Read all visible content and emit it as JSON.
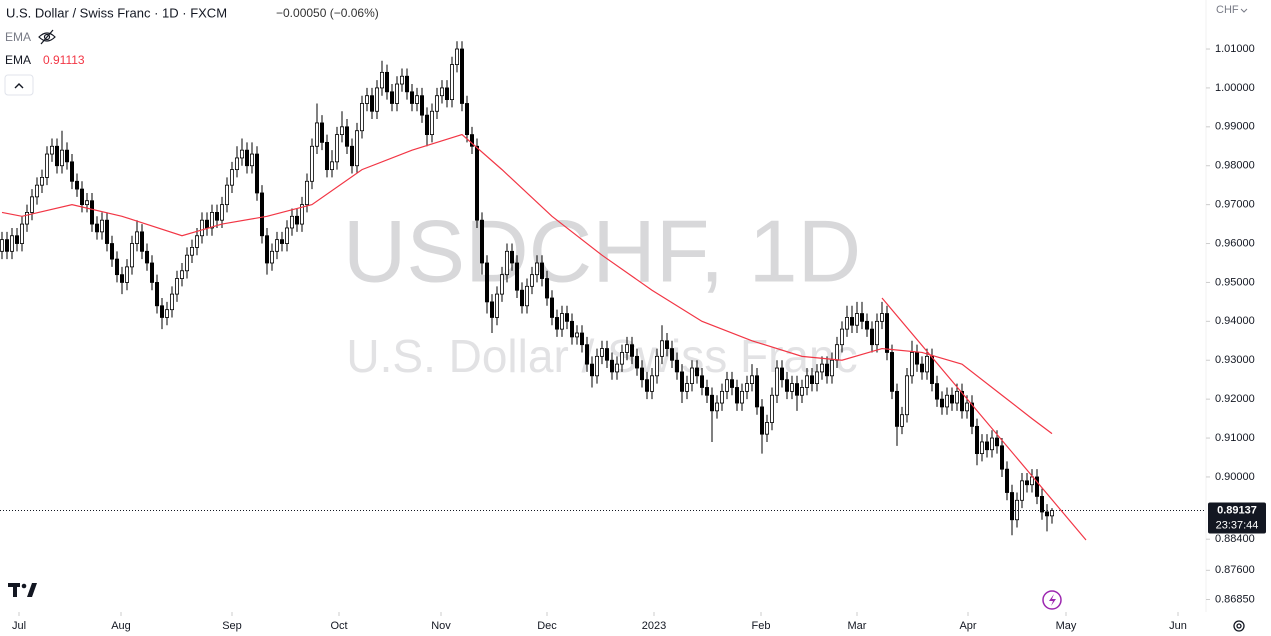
{
  "header": {
    "title": "U.S. Dollar / Swiss Franc · 1D · FXCM",
    "change": "−0.00050 (−0.06%)"
  },
  "indicators": [
    {
      "name": "EMA"
    },
    {
      "name": "EMA",
      "value": 0.91113,
      "color": "#f23645"
    }
  ],
  "chart_data": {
    "type": "candlestick",
    "currency": "CHF",
    "watermark": "USDCHF, 1D",
    "watermark_sub": "U.S. Dollar / Swiss Franc",
    "up_color": "#ffffff",
    "down_color": "#000000",
    "wick_color": "#000000",
    "xlim": [
      -0.4,
      240.8
    ],
    "ylim": [
      0.8658,
      1.0226
    ],
    "yticks": [
      {
        "value": 1.01,
        "label": "1.01000"
      },
      {
        "value": 1.0,
        "label": "1.00000"
      },
      {
        "value": 0.99,
        "label": "0.99000"
      },
      {
        "value": 0.98,
        "label": "0.98000"
      },
      {
        "value": 0.97,
        "label": "0.97000"
      },
      {
        "value": 0.96,
        "label": "0.96000"
      },
      {
        "value": 0.95,
        "label": "0.95000"
      },
      {
        "value": 0.94,
        "label": "0.94000"
      },
      {
        "value": 0.93,
        "label": "0.93000"
      },
      {
        "value": 0.92,
        "label": "0.92000"
      },
      {
        "value": 0.91,
        "label": "0.91000"
      },
      {
        "value": 0.9,
        "label": "0.90000"
      },
      {
        "value": 0.884,
        "label": "0.88400"
      },
      {
        "value": 0.876,
        "label": "0.87600"
      },
      {
        "value": 0.8685,
        "label": "0.86850"
      }
    ],
    "xticks": [
      {
        "value": 3.4,
        "label": "Jul"
      },
      {
        "value": 23.8,
        "label": "Aug"
      },
      {
        "value": 46,
        "label": "Sep"
      },
      {
        "value": 67.4,
        "label": "Oct"
      },
      {
        "value": 87.8,
        "label": "Nov"
      },
      {
        "value": 109,
        "label": "Dec"
      },
      {
        "value": 130.4,
        "label": "2023"
      },
      {
        "value": 151.8,
        "label": "Feb"
      },
      {
        "value": 171,
        "label": "Mar"
      },
      {
        "value": 193.2,
        "label": "Apr"
      },
      {
        "value": 212.8,
        "label": "May"
      },
      {
        "value": 235.2,
        "label": "Jun"
      }
    ],
    "last_price": {
      "value": 0.89137,
      "label": "0.89137"
    },
    "countdown": "23:37:44",
    "ema": {
      "color": "#f23645",
      "x": [
        0,
        4,
        14,
        24,
        36,
        44,
        53,
        62,
        72,
        82,
        92,
        100,
        110,
        120,
        130,
        140,
        150,
        160,
        168,
        176,
        184,
        192,
        200,
        206,
        210
      ],
      "values": [
        0.968,
        0.967,
        0.97,
        0.967,
        0.962,
        0.965,
        0.967,
        0.97,
        0.979,
        0.984,
        0.988,
        0.979,
        0.967,
        0.957,
        0.948,
        0.94,
        0.935,
        0.931,
        0.93,
        0.933,
        0.932,
        0.929,
        0.921,
        0.915,
        0.91113
      ]
    },
    "trendline": {
      "color": "#f23645",
      "x": [
        176,
        216.8
      ],
      "values": [
        0.946,
        0.8838
      ]
    },
    "ohlc": [
      [
        0.958,
        0.963,
        0.956,
        0.961
      ],
      [
        0.961,
        0.963,
        0.956,
        0.958
      ],
      [
        0.958,
        0.964,
        0.956,
        0.962
      ],
      [
        0.962,
        0.964,
        0.958,
        0.96
      ],
      [
        0.96,
        0.967,
        0.958,
        0.965
      ],
      [
        0.965,
        0.97,
        0.963,
        0.968
      ],
      [
        0.968,
        0.974,
        0.966,
        0.972
      ],
      [
        0.972,
        0.977,
        0.97,
        0.975
      ],
      [
        0.975,
        0.979,
        0.973,
        0.977
      ],
      [
        0.977,
        0.985,
        0.975,
        0.983
      ],
      [
        0.983,
        0.987,
        0.981,
        0.985
      ],
      [
        0.985,
        0.987,
        0.978,
        0.98
      ],
      [
        0.98,
        0.989,
        0.978,
        0.984
      ],
      [
        0.984,
        0.986,
        0.979,
        0.981
      ],
      [
        0.981,
        0.983,
        0.974,
        0.976
      ],
      [
        0.976,
        0.978,
        0.972,
        0.974
      ],
      [
        0.974,
        0.976,
        0.968,
        0.97
      ],
      [
        0.97,
        0.973,
        0.968,
        0.971
      ],
      [
        0.971,
        0.973,
        0.963,
        0.965
      ],
      [
        0.965,
        0.967,
        0.961,
        0.963
      ],
      [
        0.963,
        0.968,
        0.961,
        0.966
      ],
      [
        0.966,
        0.968,
        0.958,
        0.96
      ],
      [
        0.96,
        0.962,
        0.954,
        0.956
      ],
      [
        0.956,
        0.958,
        0.95,
        0.952
      ],
      [
        0.952,
        0.954,
        0.947,
        0.95
      ],
      [
        0.95,
        0.956,
        0.948,
        0.954
      ],
      [
        0.954,
        0.962,
        0.952,
        0.96
      ],
      [
        0.96,
        0.966,
        0.958,
        0.963
      ],
      [
        0.963,
        0.965,
        0.956,
        0.958
      ],
      [
        0.958,
        0.96,
        0.953,
        0.955
      ],
      [
        0.955,
        0.957,
        0.948,
        0.95
      ],
      [
        0.95,
        0.952,
        0.942,
        0.944
      ],
      [
        0.944,
        0.946,
        0.938,
        0.941
      ],
      [
        0.941,
        0.945,
        0.939,
        0.943
      ],
      [
        0.943,
        0.949,
        0.941,
        0.947
      ],
      [
        0.947,
        0.953,
        0.945,
        0.951
      ],
      [
        0.951,
        0.955,
        0.949,
        0.953
      ],
      [
        0.953,
        0.959,
        0.951,
        0.957
      ],
      [
        0.957,
        0.961,
        0.955,
        0.959
      ],
      [
        0.959,
        0.964,
        0.957,
        0.962
      ],
      [
        0.962,
        0.968,
        0.96,
        0.966
      ],
      [
        0.966,
        0.968,
        0.962,
        0.964
      ],
      [
        0.964,
        0.97,
        0.962,
        0.968
      ],
      [
        0.968,
        0.97,
        0.964,
        0.966
      ],
      [
        0.966,
        0.972,
        0.964,
        0.97
      ],
      [
        0.97,
        0.977,
        0.968,
        0.975
      ],
      [
        0.975,
        0.981,
        0.973,
        0.979
      ],
      [
        0.979,
        0.985,
        0.977,
        0.982
      ],
      [
        0.982,
        0.987,
        0.98,
        0.984
      ],
      [
        0.984,
        0.986,
        0.978,
        0.98
      ],
      [
        0.98,
        0.986,
        0.978,
        0.983
      ],
      [
        0.983,
        0.985,
        0.971,
        0.973
      ],
      [
        0.973,
        0.975,
        0.96,
        0.962
      ],
      [
        0.962,
        0.964,
        0.952,
        0.955
      ],
      [
        0.955,
        0.96,
        0.953,
        0.958
      ],
      [
        0.958,
        0.963,
        0.956,
        0.961
      ],
      [
        0.961,
        0.963,
        0.958,
        0.96
      ],
      [
        0.96,
        0.966,
        0.958,
        0.964
      ],
      [
        0.964,
        0.969,
        0.962,
        0.967
      ],
      [
        0.967,
        0.969,
        0.963,
        0.965
      ],
      [
        0.965,
        0.972,
        0.963,
        0.97
      ],
      [
        0.97,
        0.978,
        0.968,
        0.976
      ],
      [
        0.976,
        0.987,
        0.974,
        0.985
      ],
      [
        0.985,
        0.996,
        0.983,
        0.991
      ],
      [
        0.991,
        0.993,
        0.984,
        0.986
      ],
      [
        0.986,
        0.988,
        0.977,
        0.979
      ],
      [
        0.979,
        0.984,
        0.977,
        0.981
      ],
      [
        0.981,
        0.99,
        0.979,
        0.988
      ],
      [
        0.988,
        0.994,
        0.986,
        0.99
      ],
      [
        0.99,
        0.992,
        0.983,
        0.985
      ],
      [
        0.985,
        0.987,
        0.978,
        0.98
      ],
      [
        0.98,
        0.991,
        0.978,
        0.989
      ],
      [
        0.989,
        0.998,
        0.987,
        0.996
      ],
      [
        0.996,
        1.0,
        0.994,
        0.998
      ],
      [
        0.998,
        1.0,
        0.992,
        0.994
      ],
      [
        0.994,
        1.002,
        0.992,
        1.0
      ],
      [
        1.0,
        1.007,
        0.998,
        1.004
      ],
      [
        1.004,
        1.006,
        0.997,
        0.999
      ],
      [
        0.999,
        1.001,
        0.994,
        0.996
      ],
      [
        0.996,
        1.003,
        0.994,
        1.001
      ],
      [
        1.001,
        1.005,
        0.999,
        1.003
      ],
      [
        1.003,
        1.005,
        0.997,
        0.999
      ],
      [
        0.999,
        1.001,
        0.994,
        0.996
      ],
      [
        0.996,
        1.0,
        0.994,
        0.998
      ],
      [
        0.998,
        1.0,
        0.991,
        0.993
      ],
      [
        0.993,
        0.995,
        0.985,
        0.988
      ],
      [
        0.988,
        0.996,
        0.986,
        0.994
      ],
      [
        0.994,
        1.0,
        0.992,
        0.998
      ],
      [
        0.998,
        1.002,
        0.996,
        1.0
      ],
      [
        1.0,
        1.002,
        0.995,
        0.997
      ],
      [
        0.997,
        1.008,
        0.995,
        1.006
      ],
      [
        1.006,
        1.012,
        1.004,
        1.01
      ],
      [
        1.01,
        1.012,
        0.994,
        0.996
      ],
      [
        0.996,
        0.998,
        0.986,
        0.988
      ],
      [
        0.988,
        0.99,
        0.983,
        0.985
      ],
      [
        0.985,
        0.987,
        0.964,
        0.966
      ],
      [
        0.966,
        0.968,
        0.952,
        0.955
      ],
      [
        0.955,
        0.957,
        0.942,
        0.945
      ],
      [
        0.945,
        0.947,
        0.937,
        0.941
      ],
      [
        0.941,
        0.949,
        0.939,
        0.947
      ],
      [
        0.947,
        0.954,
        0.945,
        0.952
      ],
      [
        0.952,
        0.96,
        0.95,
        0.958
      ],
      [
        0.958,
        0.96,
        0.953,
        0.955
      ],
      [
        0.955,
        0.957,
        0.946,
        0.948
      ],
      [
        0.948,
        0.95,
        0.942,
        0.944
      ],
      [
        0.944,
        0.951,
        0.942,
        0.949
      ],
      [
        0.949,
        0.954,
        0.947,
        0.952
      ],
      [
        0.952,
        0.957,
        0.95,
        0.955
      ],
      [
        0.955,
        0.957,
        0.949,
        0.951
      ],
      [
        0.951,
        0.953,
        0.944,
        0.946
      ],
      [
        0.946,
        0.948,
        0.939,
        0.941
      ],
      [
        0.941,
        0.943,
        0.936,
        0.938
      ],
      [
        0.938,
        0.944,
        0.936,
        0.942
      ],
      [
        0.942,
        0.944,
        0.938,
        0.94
      ],
      [
        0.94,
        0.942,
        0.934,
        0.936
      ],
      [
        0.936,
        0.939,
        0.934,
        0.937
      ],
      [
        0.937,
        0.939,
        0.932,
        0.934
      ],
      [
        0.934,
        0.936,
        0.927,
        0.929
      ],
      [
        0.929,
        0.931,
        0.923,
        0.926
      ],
      [
        0.926,
        0.933,
        0.924,
        0.931
      ],
      [
        0.931,
        0.935,
        0.929,
        0.933
      ],
      [
        0.933,
        0.935,
        0.928,
        0.93
      ],
      [
        0.93,
        0.932,
        0.925,
        0.927
      ],
      [
        0.927,
        0.931,
        0.925,
        0.929
      ],
      [
        0.929,
        0.934,
        0.927,
        0.932
      ],
      [
        0.932,
        0.936,
        0.93,
        0.934
      ],
      [
        0.934,
        0.936,
        0.929,
        0.931
      ],
      [
        0.931,
        0.933,
        0.926,
        0.928
      ],
      [
        0.928,
        0.93,
        0.923,
        0.925
      ],
      [
        0.925,
        0.927,
        0.92,
        0.922
      ],
      [
        0.922,
        0.928,
        0.92,
        0.926
      ],
      [
        0.926,
        0.933,
        0.924,
        0.931
      ],
      [
        0.931,
        0.939,
        0.929,
        0.935
      ],
      [
        0.935,
        0.937,
        0.931,
        0.933
      ],
      [
        0.933,
        0.935,
        0.928,
        0.93
      ],
      [
        0.93,
        0.932,
        0.925,
        0.927
      ],
      [
        0.927,
        0.929,
        0.919,
        0.922
      ],
      [
        0.922,
        0.926,
        0.92,
        0.924
      ],
      [
        0.924,
        0.93,
        0.922,
        0.928
      ],
      [
        0.928,
        0.93,
        0.924,
        0.926
      ],
      [
        0.926,
        0.928,
        0.921,
        0.923
      ],
      [
        0.923,
        0.925,
        0.919,
        0.921
      ],
      [
        0.921,
        0.923,
        0.909,
        0.917
      ],
      [
        0.917,
        0.921,
        0.915,
        0.919
      ],
      [
        0.919,
        0.924,
        0.917,
        0.922
      ],
      [
        0.922,
        0.927,
        0.92,
        0.925
      ],
      [
        0.925,
        0.927,
        0.921,
        0.923
      ],
      [
        0.923,
        0.925,
        0.917,
        0.919
      ],
      [
        0.919,
        0.924,
        0.917,
        0.922
      ],
      [
        0.922,
        0.926,
        0.92,
        0.924
      ],
      [
        0.924,
        0.929,
        0.922,
        0.926
      ],
      [
        0.926,
        0.928,
        0.916,
        0.918
      ],
      [
        0.918,
        0.92,
        0.906,
        0.911
      ],
      [
        0.911,
        0.916,
        0.909,
        0.914
      ],
      [
        0.914,
        0.923,
        0.912,
        0.921
      ],
      [
        0.921,
        0.93,
        0.919,
        0.928
      ],
      [
        0.928,
        0.93,
        0.923,
        0.925
      ],
      [
        0.925,
        0.927,
        0.92,
        0.922
      ],
      [
        0.922,
        0.926,
        0.92,
        0.924
      ],
      [
        0.924,
        0.926,
        0.917,
        0.921
      ],
      [
        0.921,
        0.925,
        0.919,
        0.923
      ],
      [
        0.923,
        0.928,
        0.921,
        0.926
      ],
      [
        0.926,
        0.928,
        0.922,
        0.924
      ],
      [
        0.924,
        0.929,
        0.922,
        0.927
      ],
      [
        0.927,
        0.931,
        0.925,
        0.929
      ],
      [
        0.929,
        0.931,
        0.924,
        0.926
      ],
      [
        0.926,
        0.932,
        0.924,
        0.93
      ],
      [
        0.93,
        0.936,
        0.928,
        0.934
      ],
      [
        0.934,
        0.94,
        0.932,
        0.938
      ],
      [
        0.938,
        0.944,
        0.936,
        0.941
      ],
      [
        0.941,
        0.944,
        0.937,
        0.939
      ],
      [
        0.939,
        0.945,
        0.937,
        0.942
      ],
      [
        0.942,
        0.945,
        0.938,
        0.94
      ],
      [
        0.94,
        0.942,
        0.936,
        0.938
      ],
      [
        0.938,
        0.94,
        0.932,
        0.934
      ],
      [
        0.934,
        0.942,
        0.932,
        0.94
      ],
      [
        0.94,
        0.945,
        0.938,
        0.942
      ],
      [
        0.942,
        0.944,
        0.93,
        0.932
      ],
      [
        0.932,
        0.934,
        0.92,
        0.922
      ],
      [
        0.922,
        0.924,
        0.908,
        0.913
      ],
      [
        0.913,
        0.918,
        0.911,
        0.916
      ],
      [
        0.916,
        0.928,
        0.914,
        0.926
      ],
      [
        0.926,
        0.935,
        0.924,
        0.932
      ],
      [
        0.932,
        0.934,
        0.927,
        0.929
      ],
      [
        0.929,
        0.931,
        0.925,
        0.927
      ],
      [
        0.927,
        0.933,
        0.925,
        0.931
      ],
      [
        0.931,
        0.933,
        0.922,
        0.924
      ],
      [
        0.924,
        0.926,
        0.918,
        0.92
      ],
      [
        0.92,
        0.922,
        0.916,
        0.918
      ],
      [
        0.918,
        0.923,
        0.916,
        0.921
      ],
      [
        0.921,
        0.923,
        0.917,
        0.919
      ],
      [
        0.919,
        0.924,
        0.917,
        0.922
      ],
      [
        0.922,
        0.924,
        0.915,
        0.917
      ],
      [
        0.917,
        0.921,
        0.915,
        0.919
      ],
      [
        0.919,
        0.921,
        0.911,
        0.913
      ],
      [
        0.913,
        0.915,
        0.903,
        0.906
      ],
      [
        0.906,
        0.911,
        0.904,
        0.909
      ],
      [
        0.909,
        0.911,
        0.905,
        0.907
      ],
      [
        0.907,
        0.912,
        0.905,
        0.91
      ],
      [
        0.91,
        0.912,
        0.906,
        0.908
      ],
      [
        0.908,
        0.91,
        0.9,
        0.902
      ],
      [
        0.902,
        0.904,
        0.894,
        0.896
      ],
      [
        0.896,
        0.898,
        0.885,
        0.889
      ],
      [
        0.889,
        0.896,
        0.887,
        0.894
      ],
      [
        0.894,
        0.901,
        0.892,
        0.899
      ],
      [
        0.899,
        0.901,
        0.896,
        0.898
      ],
      [
        0.898,
        0.902,
        0.896,
        0.9
      ],
      [
        0.9,
        0.902,
        0.893,
        0.895
      ],
      [
        0.895,
        0.897,
        0.889,
        0.891
      ],
      [
        0.891,
        0.893,
        0.886,
        0.89
      ],
      [
        0.89,
        0.892,
        0.888,
        0.89137
      ]
    ]
  }
}
